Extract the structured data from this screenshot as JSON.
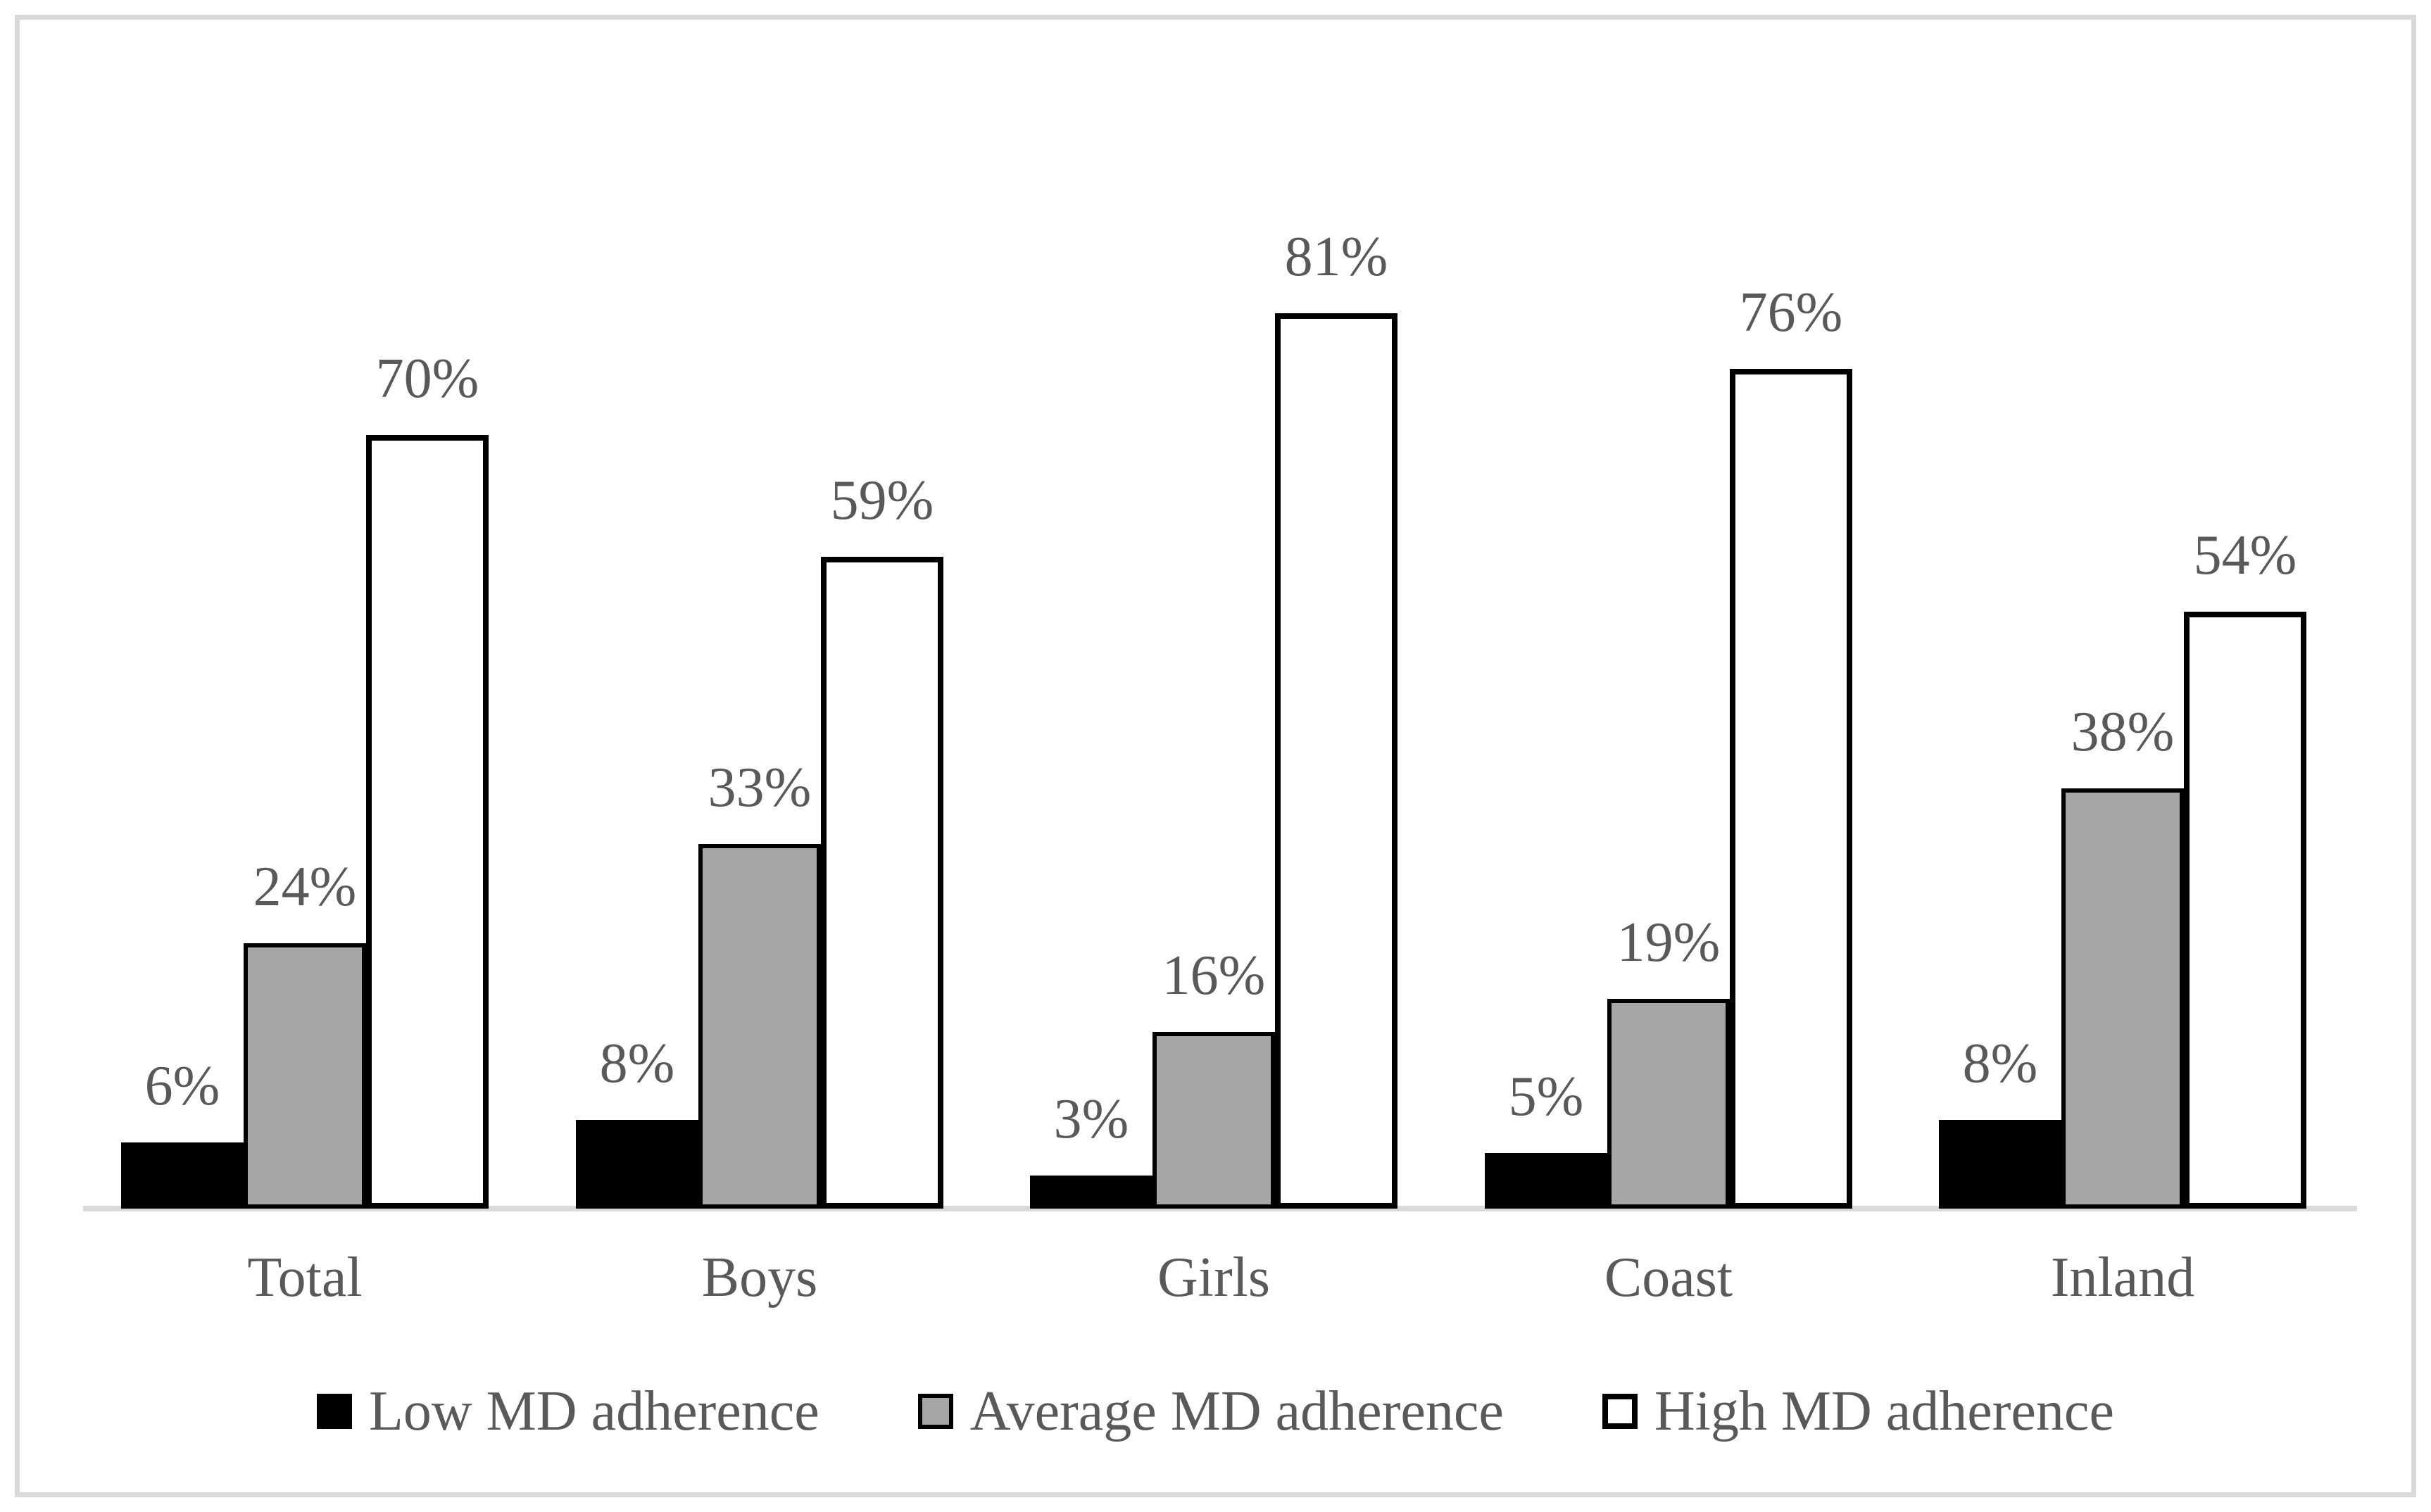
{
  "chart_data": {
    "type": "bar",
    "title": "",
    "xlabel": "",
    "ylabel": "",
    "value_suffix": "%",
    "ylim": [
      0,
      90
    ],
    "axis_ticks_visible": false,
    "grid": false,
    "legend_position": "bottom",
    "categories": [
      "Total",
      "Boys",
      "Girls",
      "Coast",
      "Inland"
    ],
    "series": [
      {
        "key": "low",
        "name": "Low MD adherence",
        "color": "#000000",
        "values": [
          6,
          8,
          3,
          5,
          8
        ],
        "labels": [
          "6%",
          "8%",
          "3%",
          "5%",
          "8%"
        ]
      },
      {
        "key": "average",
        "name": "Average MD adherence",
        "color": "#a6a6a6",
        "values": [
          24,
          33,
          16,
          19,
          38
        ],
        "labels": [
          "24%",
          "33%",
          "16%",
          "19%",
          "38%"
        ]
      },
      {
        "key": "high",
        "name": "High MD adherence",
        "color": "#ffffff",
        "values": [
          70,
          59,
          81,
          76,
          54
        ],
        "labels": [
          "70%",
          "59%",
          "81%",
          "76%",
          "54%"
        ]
      }
    ],
    "colors": {
      "bar_border": "#000000",
      "baseline": "#d9d9d9",
      "frame_border": "#d9d9d9",
      "text": "#595959",
      "background": "#ffffff"
    }
  }
}
